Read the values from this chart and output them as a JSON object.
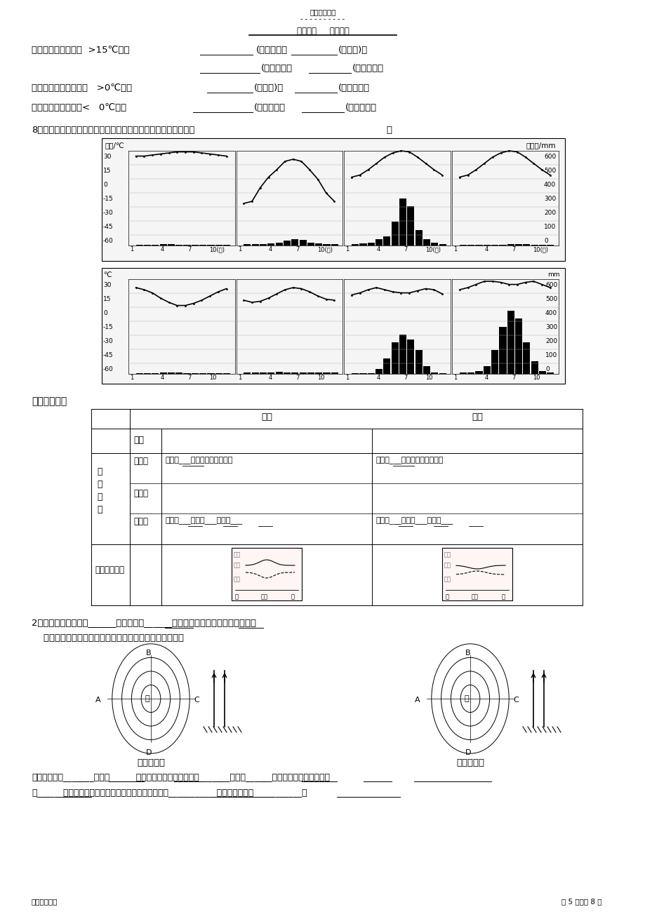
{
  "bg_color": "#ffffff",
  "title_top": "精选学习资料",
  "title_dots": "- - - - - - - - - -",
  "subtitle": "学习必备     欢迎下载",
  "subtitle_line": "--------------------",
  "page_info": "名师归纳总结                                                                                                         第 5 页，共 8 页",
  "section1_lines": [
    "热带气候（最低温度  >15℃）：          (年雨型）、         (分干湿)、",
    "                        (少雨型）、        (夏雨型）；",
    "亚热带气候（最低温度   >0℃）：        (冬雨型)、        (夏雨型）；",
    "温带气候（最低温度<   0℃）：            (年雨型）、          (少雨型）；"
  ],
  "question8": "8、读下列三种气候类型年内各月气温和降水量图，判断气候类型",
  "section5_title": "五、天气系统",
  "table_headers": [
    "",
    "冷锋",
    "暖锋"
  ],
  "table_rows": [
    [
      "符号",
      "",
      ""
    ],
    [
      "天\n气\n特\n征",
      "过境前\n\n过境时\n\n过境后",
      "受单一___气团控制，天气晴朗\n\n\n天气转___，气温___，气压___",
      "受单一___气团控制，低温晴朗\n\n\n天气转___，气温___，气压___"
    ],
    [
      "气压气温变化",
      "",
      ""
    ]
  ],
  "section2_text1": "2、气旋是指中心气压______，四周气压______的大气水平涡旋。低压就是气旋。",
  "section2_text2": "    请用图示意低压（气旋）系统的特点及其对天气的影响。",
  "circle_label1": "北半球气旋",
  "circle_label2": "南半球气旋",
  "bottom_text1": "北半球气旋为_______时针辐______（合或散），南半球气旋为_______时针辐______（合或散）。气旋中心气",
  "bottom_text2": "流______（上升或下沉），气旋控制下的地区一般出现___________天气。代表天气___________。"
}
